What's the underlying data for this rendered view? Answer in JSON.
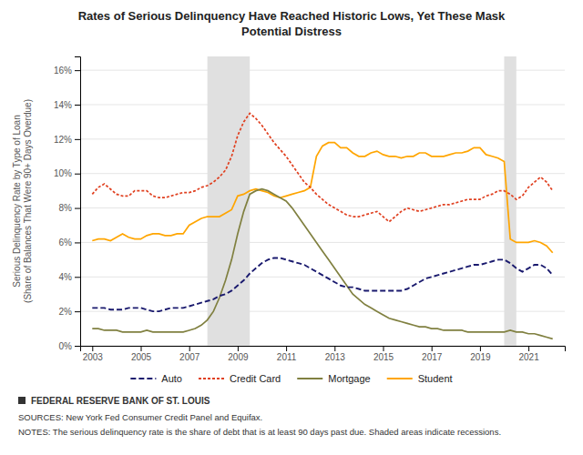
{
  "chart_data": {
    "type": "line",
    "title": [
      "Rates of Serious Delinquency Have Reached Historic Lows, Yet These Mask",
      "Potential Distress"
    ],
    "ylabel": [
      "Serious Delinquency Rate by Type of Loan",
      "(Share of Balances That Were 90+ Days Overdue)"
    ],
    "annotations": [
      "FEDERAL RESERVE BANK OF ST. LOUIS",
      "SOURCES: New York Fed Consumer Credit Panel and Equifax.",
      "NOTES: The serious delinquency rate is the share of debt that is at least 90 days past due. Shaded areas indicate recessions."
    ],
    "x": [
      2003.0,
      2003.25,
      2003.5,
      2003.75,
      2004.0,
      2004.25,
      2004.5,
      2004.75,
      2005.0,
      2005.25,
      2005.5,
      2005.75,
      2006.0,
      2006.25,
      2006.5,
      2006.75,
      2007.0,
      2007.25,
      2007.5,
      2007.75,
      2008.0,
      2008.25,
      2008.5,
      2008.75,
      2009.0,
      2009.25,
      2009.5,
      2009.75,
      2010.0,
      2010.25,
      2010.5,
      2010.75,
      2011.0,
      2011.25,
      2011.5,
      2011.75,
      2012.0,
      2012.25,
      2012.5,
      2012.75,
      2013.0,
      2013.25,
      2013.5,
      2013.75,
      2014.0,
      2014.25,
      2014.5,
      2014.75,
      2015.0,
      2015.25,
      2015.5,
      2015.75,
      2016.0,
      2016.25,
      2016.5,
      2016.75,
      2017.0,
      2017.25,
      2017.5,
      2017.75,
      2018.0,
      2018.25,
      2018.5,
      2018.75,
      2019.0,
      2019.25,
      2019.5,
      2019.75,
      2020.0,
      2020.25,
      2020.5,
      2020.75,
      2021.0,
      2021.25,
      2021.5,
      2021.75,
      2022.0
    ],
    "series": [
      {
        "name": "Auto",
        "color": "#1a1a6e",
        "line_style": "long-dashed",
        "values": [
          2.2,
          2.2,
          2.2,
          2.1,
          2.1,
          2.1,
          2.2,
          2.2,
          2.2,
          2.1,
          2.0,
          2.0,
          2.1,
          2.2,
          2.2,
          2.2,
          2.3,
          2.4,
          2.5,
          2.6,
          2.7,
          2.9,
          3.0,
          3.2,
          3.5,
          3.8,
          4.2,
          4.5,
          4.8,
          5.0,
          5.1,
          5.1,
          5.0,
          4.9,
          4.8,
          4.7,
          4.5,
          4.3,
          4.1,
          3.9,
          3.7,
          3.5,
          3.4,
          3.4,
          3.3,
          3.2,
          3.2,
          3.2,
          3.2,
          3.2,
          3.2,
          3.2,
          3.3,
          3.5,
          3.7,
          3.9,
          4.0,
          4.1,
          4.2,
          4.3,
          4.4,
          4.5,
          4.6,
          4.7,
          4.7,
          4.8,
          4.9,
          5.0,
          5.0,
          4.8,
          4.5,
          4.3,
          4.5,
          4.7,
          4.7,
          4.5,
          4.1
        ]
      },
      {
        "name": "Credit Card",
        "color": "#e04020",
        "line_style": "dashed",
        "values": [
          8.8,
          9.2,
          9.4,
          9.1,
          8.8,
          8.7,
          8.7,
          9.0,
          9.0,
          9.0,
          8.7,
          8.6,
          8.6,
          8.7,
          8.8,
          8.9,
          8.9,
          9.0,
          9.2,
          9.3,
          9.5,
          9.8,
          10.2,
          11.0,
          12.2,
          13.0,
          13.5,
          13.2,
          12.8,
          12.3,
          11.8,
          11.4,
          11.0,
          10.5,
          10.0,
          9.5,
          9.2,
          8.8,
          8.5,
          8.2,
          8.0,
          7.8,
          7.6,
          7.5,
          7.5,
          7.6,
          7.7,
          7.8,
          7.5,
          7.2,
          7.5,
          7.8,
          8.0,
          7.9,
          7.8,
          7.9,
          8.0,
          8.1,
          8.2,
          8.2,
          8.3,
          8.4,
          8.5,
          8.5,
          8.5,
          8.7,
          8.8,
          9.0,
          9.0,
          8.8,
          8.5,
          8.7,
          9.2,
          9.5,
          9.8,
          9.5,
          9.0
        ]
      },
      {
        "name": "Mortgage",
        "color": "#808040",
        "line_style": "solid",
        "values": [
          1.0,
          1.0,
          0.9,
          0.9,
          0.9,
          0.8,
          0.8,
          0.8,
          0.8,
          0.9,
          0.8,
          0.8,
          0.8,
          0.8,
          0.8,
          0.8,
          0.9,
          1.0,
          1.2,
          1.5,
          2.0,
          2.8,
          3.8,
          5.0,
          6.5,
          7.8,
          8.8,
          9.0,
          9.1,
          9.0,
          8.8,
          8.6,
          8.4,
          8.0,
          7.5,
          7.0,
          6.5,
          6.0,
          5.5,
          5.0,
          4.5,
          4.0,
          3.5,
          3.0,
          2.7,
          2.4,
          2.2,
          2.0,
          1.8,
          1.6,
          1.5,
          1.4,
          1.3,
          1.2,
          1.1,
          1.1,
          1.0,
          1.0,
          0.9,
          0.9,
          0.9,
          0.9,
          0.8,
          0.8,
          0.8,
          0.8,
          0.8,
          0.8,
          0.8,
          0.9,
          0.8,
          0.8,
          0.7,
          0.7,
          0.6,
          0.5,
          0.4
        ]
      },
      {
        "name": "Student",
        "color": "#ffa500",
        "line_style": "solid",
        "values": [
          6.1,
          6.2,
          6.2,
          6.1,
          6.3,
          6.5,
          6.3,
          6.2,
          6.2,
          6.4,
          6.5,
          6.5,
          6.4,
          6.4,
          6.5,
          6.5,
          7.0,
          7.2,
          7.4,
          7.5,
          7.5,
          7.5,
          7.7,
          7.9,
          8.7,
          8.8,
          9.0,
          9.1,
          9.0,
          8.9,
          8.7,
          8.6,
          8.7,
          8.8,
          8.9,
          9.0,
          9.2,
          11.0,
          11.6,
          11.8,
          11.8,
          11.5,
          11.5,
          11.2,
          11.0,
          11.0,
          11.2,
          11.3,
          11.1,
          11.0,
          11.0,
          10.9,
          11.0,
          11.0,
          11.2,
          11.2,
          11.0,
          11.0,
          11.0,
          11.1,
          11.2,
          11.2,
          11.3,
          11.5,
          11.5,
          11.1,
          11.0,
          10.9,
          10.7,
          6.2,
          6.0,
          6.0,
          6.0,
          6.1,
          6.0,
          5.8,
          5.4
        ]
      }
    ],
    "shaded_ranges": [
      {
        "x": [
          2007.75,
          2009.5
        ],
        "color": "#e0e0e0"
      },
      {
        "x": [
          2020.0,
          2020.5
        ],
        "color": "#e0e0e0"
      }
    ],
    "xlim": [
      2002.5,
      2022.5
    ],
    "xticks": [
      2003,
      2005,
      2007,
      2009,
      2011,
      2013,
      2015,
      2017,
      2019,
      2021
    ],
    "ylim": [
      0,
      16.8
    ],
    "yticks": [
      {
        "value": 0,
        "label": "0%"
      },
      {
        "value": 2,
        "label": "2%"
      },
      {
        "value": 4,
        "label": "4%"
      },
      {
        "value": 6,
        "label": "6%"
      },
      {
        "value": 8,
        "label": "8%"
      },
      {
        "value": 10,
        "label": "10%"
      },
      {
        "value": 12,
        "label": "12%"
      },
      {
        "value": 14,
        "label": "14%"
      },
      {
        "value": 16,
        "label": "16%"
      }
    ],
    "grid": "y",
    "legend": "bottom"
  }
}
